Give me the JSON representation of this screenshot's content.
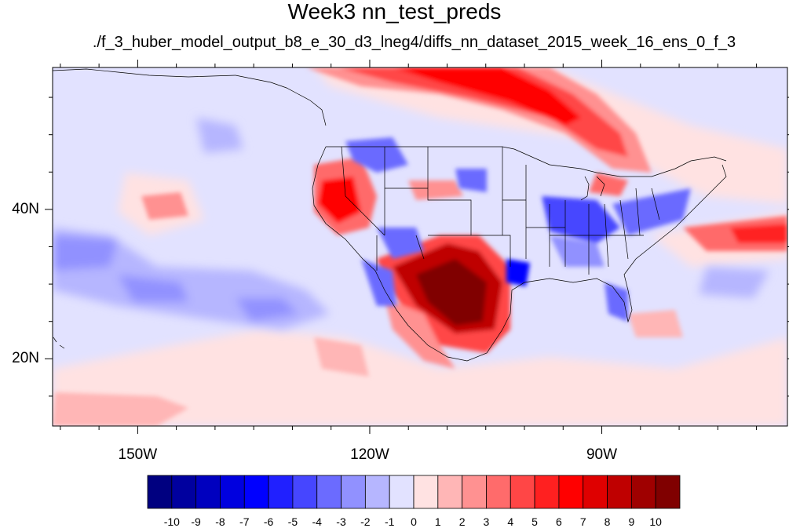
{
  "title": "Week3 nn_test_preds",
  "subtitle": "./f_3_huber_model_output_b8_e_30_d3_lneg4/diffs_nn_dataset_2015_week_16_ens_0_f_3",
  "map": {
    "lon_labels": [
      "150W",
      "120W",
      "90W"
    ],
    "lat_labels": [
      "40N",
      "20N"
    ],
    "lon_range": [
      -161,
      -66
    ],
    "lat_range": [
      11,
      59
    ]
  },
  "colorbar": {
    "labels": [
      "-10",
      "-9",
      "-8",
      "-7",
      "-6",
      "-5",
      "-4",
      "-3",
      "-2",
      "-1",
      "0",
      "1",
      "2",
      "3",
      "4",
      "5",
      "6",
      "7",
      "8",
      "9",
      "10"
    ],
    "colors": [
      "#000080",
      "#00009f",
      "#0000bf",
      "#0000df",
      "#0000ff",
      "#2020ff",
      "#4646ff",
      "#6b6bff",
      "#9191ff",
      "#b6b6ff",
      "#e2e2ff",
      "#ffe2e2",
      "#ffb6b6",
      "#ff9191",
      "#ff6b6b",
      "#ff4646",
      "#ff2020",
      "#ff0000",
      "#df0000",
      "#bf0000",
      "#9f0000",
      "#800000"
    ]
  }
}
